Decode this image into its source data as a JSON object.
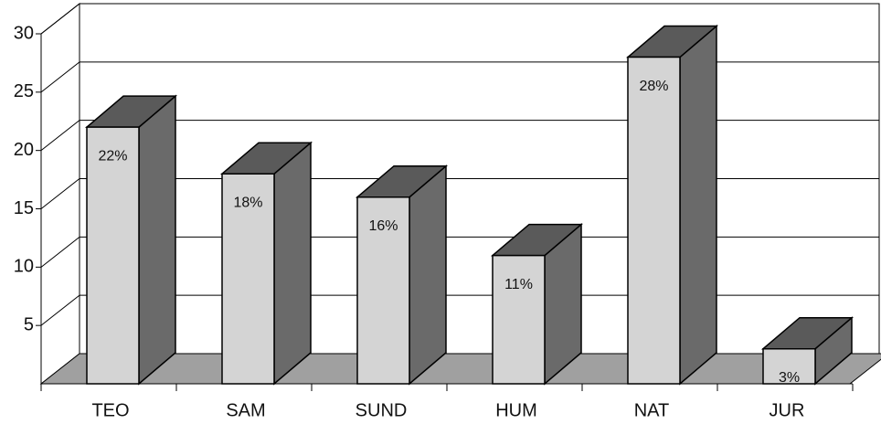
{
  "chart_data": {
    "type": "bar3d",
    "categories": [
      "TEO",
      "SAM",
      "SUND",
      "HUM",
      "NAT",
      "JUR"
    ],
    "values": [
      22,
      18,
      16,
      11,
      28,
      3
    ],
    "value_labels": [
      "22%",
      "18%",
      "16%",
      "11%",
      "28%",
      "3%"
    ],
    "color": "#d4d4d4",
    "ylim": [
      0,
      30
    ],
    "yticks": [
      5,
      10,
      15,
      20,
      25,
      30
    ],
    "grid": true
  }
}
